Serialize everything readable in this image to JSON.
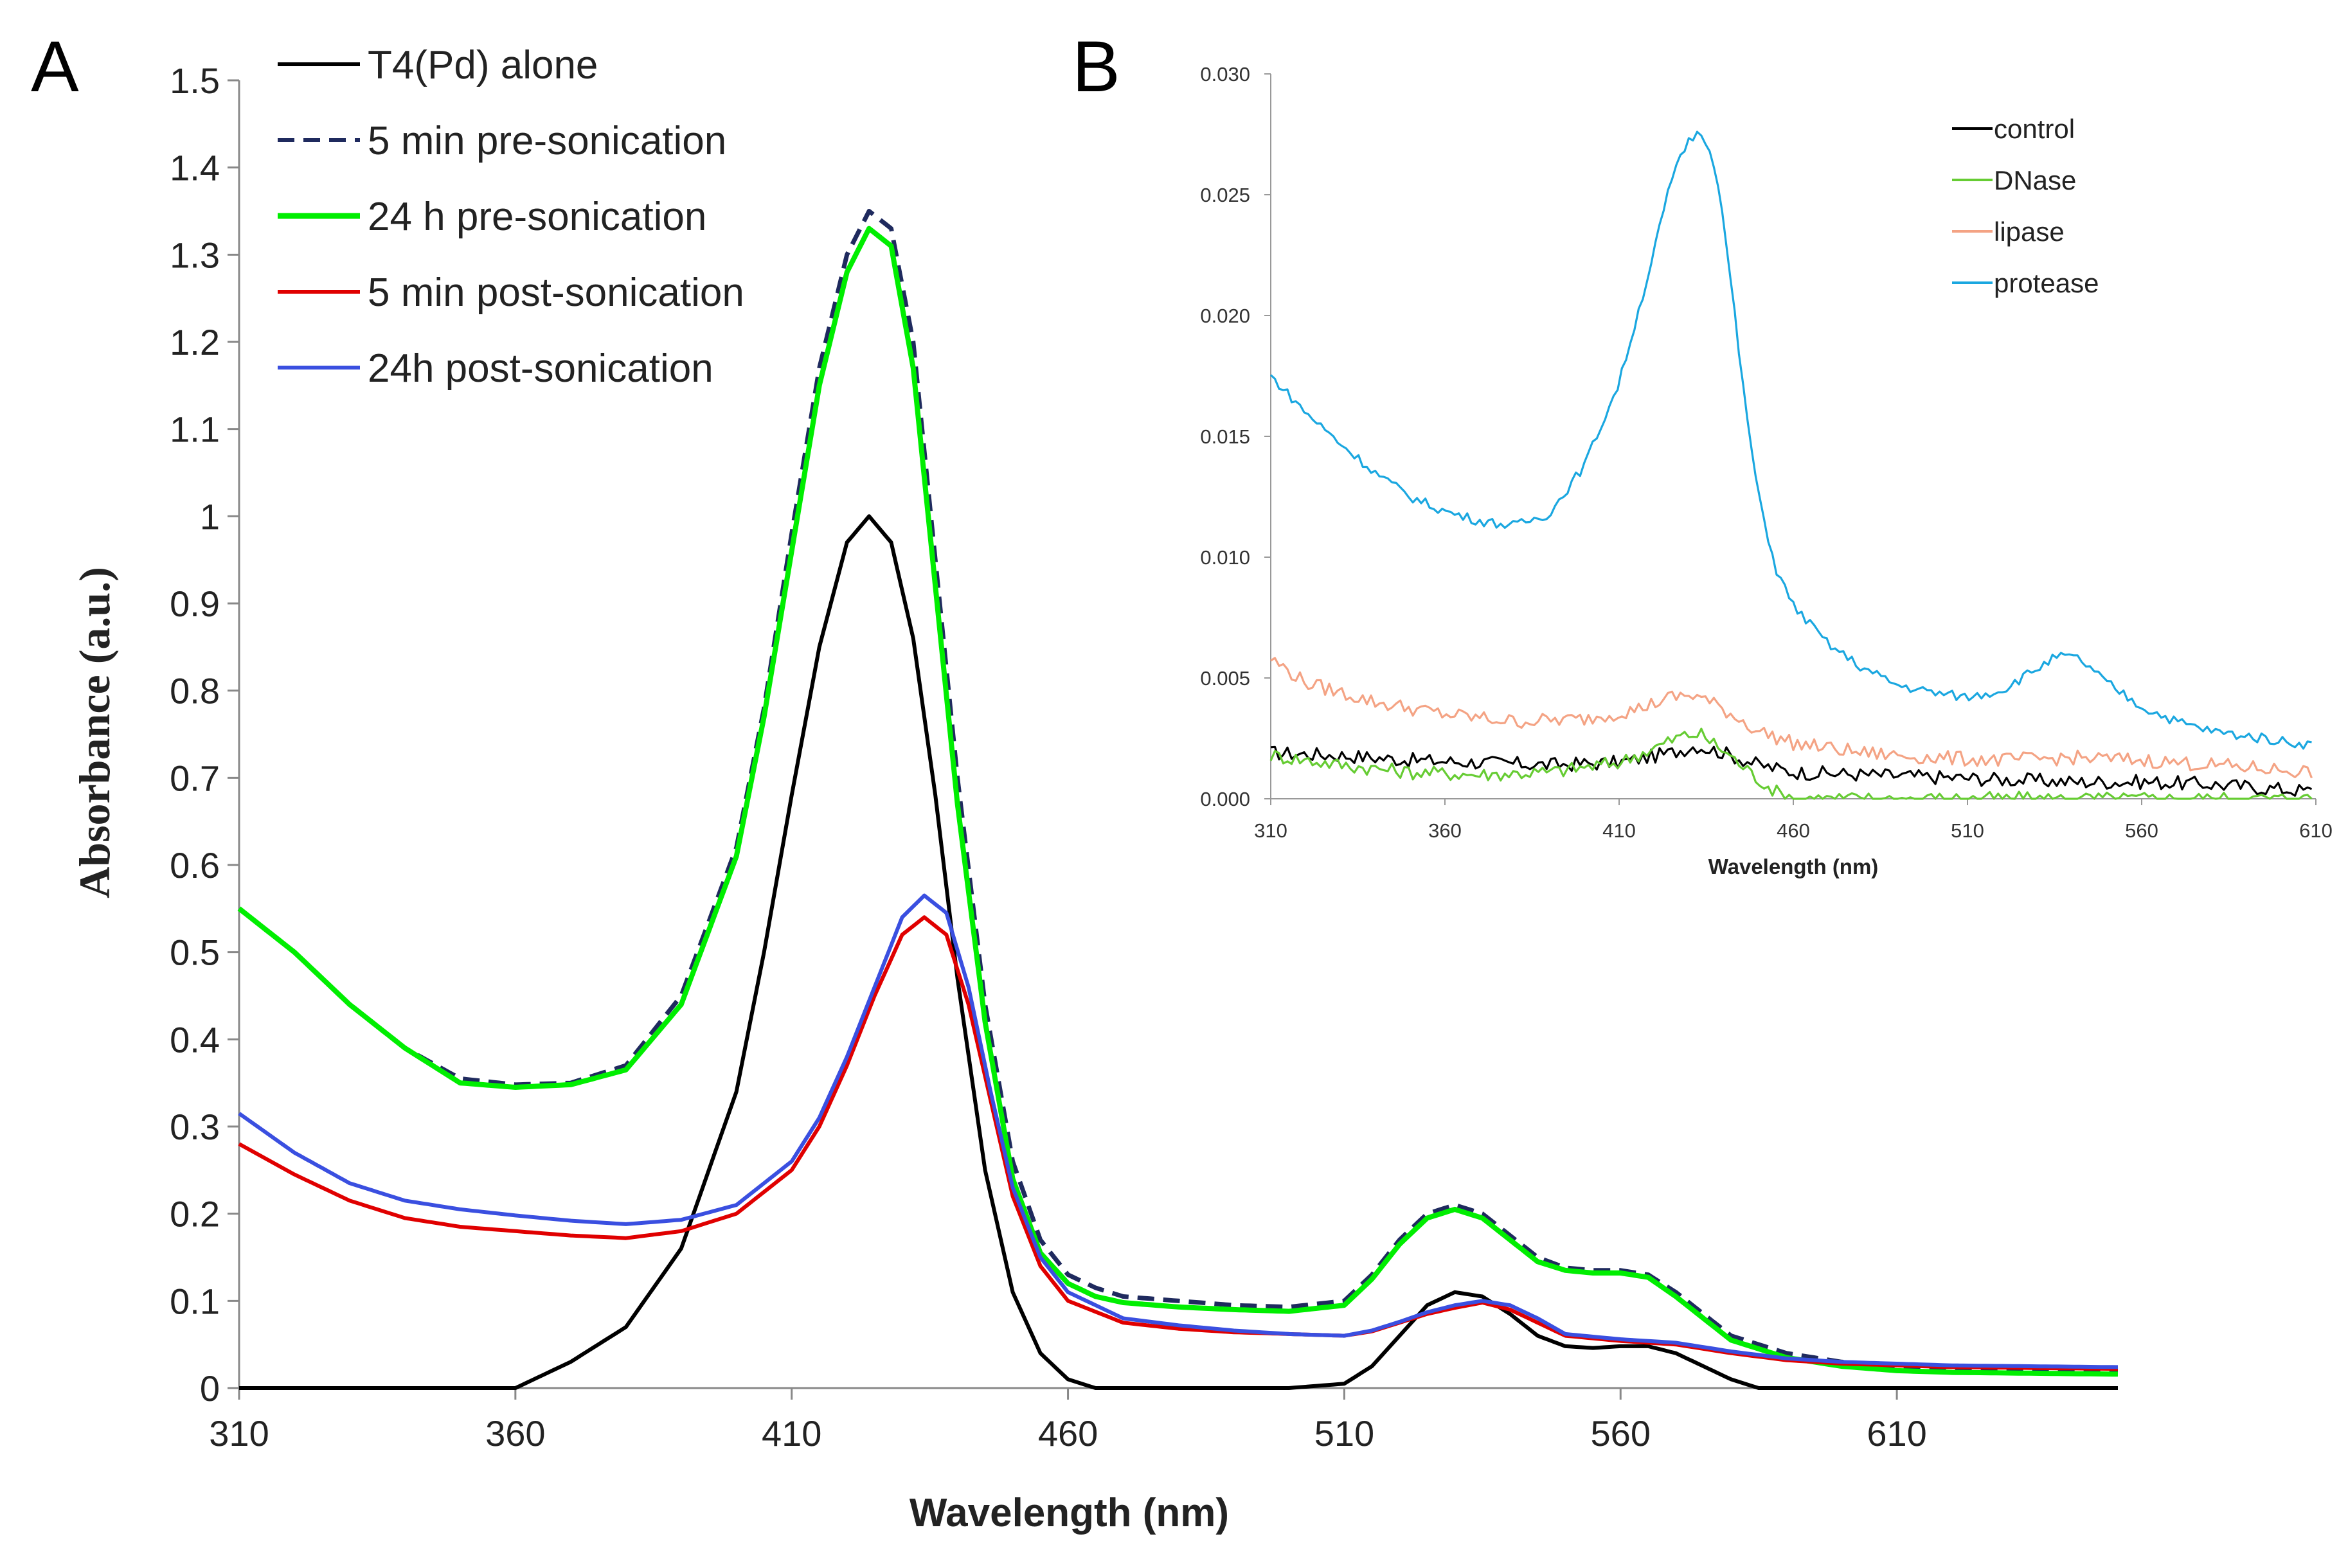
{
  "chart_data": [
    {
      "panel": "A",
      "type": "line",
      "title": "",
      "xlabel": "Wavelength (nm)",
      "ylabel": "Absorbance (a.u.)",
      "xlim": [
        310,
        650
      ],
      "ylim": [
        0,
        1.5
      ],
      "xticks": [
        "310",
        "360",
        "410",
        "460",
        "510",
        "560",
        "610"
      ],
      "xtick_values": [
        310,
        360,
        410,
        460,
        510,
        560,
        610
      ],
      "yticks": [
        "0",
        "0.1",
        "0.2",
        "0.3",
        "0.4",
        "0.5",
        "0.6",
        "0.7",
        "0.8",
        "0.9",
        "1",
        "1.1",
        "1.2",
        "1.3",
        "1.4",
        "1.5"
      ],
      "ytick_values": [
        0,
        0.1,
        0.2,
        0.3,
        0.4,
        0.5,
        0.6,
        0.7,
        0.8,
        0.9,
        1.0,
        1.1,
        1.2,
        1.3,
        1.4,
        1.5
      ],
      "legend_position": "top-left",
      "series": [
        {
          "name": "T4(Pd) alone",
          "color": "#000000",
          "dash": "solid",
          "x": [
            310,
            360,
            370,
            380,
            390,
            400,
            405,
            410,
            415,
            420,
            424,
            428,
            432,
            436,
            440,
            445,
            450,
            455,
            460,
            465,
            470,
            480,
            500,
            510,
            515,
            520,
            525,
            530,
            535,
            540,
            545,
            550,
            555,
            560,
            565,
            570,
            575,
            580,
            585,
            590,
            650
          ],
          "y": [
            0,
            0,
            0.03,
            0.07,
            0.16,
            0.34,
            0.5,
            0.68,
            0.85,
            0.97,
            1.0,
            0.97,
            0.86,
            0.68,
            0.47,
            0.25,
            0.11,
            0.04,
            0.01,
            0.0,
            0,
            0,
            0,
            0.005,
            0.025,
            0.06,
            0.095,
            0.11,
            0.105,
            0.085,
            0.06,
            0.048,
            0.046,
            0.048,
            0.048,
            0.04,
            0.025,
            0.01,
            0.0,
            0,
            0
          ]
        },
        {
          "name": "5 min pre-sonication",
          "color": "#1f2a5e",
          "dash": "dashed",
          "x": [
            310,
            320,
            330,
            340,
            350,
            360,
            370,
            380,
            390,
            400,
            405,
            410,
            415,
            420,
            424,
            428,
            432,
            436,
            440,
            445,
            450,
            455,
            460,
            465,
            470,
            480,
            490,
            500,
            510,
            515,
            520,
            525,
            530,
            535,
            540,
            545,
            550,
            555,
            560,
            565,
            570,
            575,
            580,
            590,
            600,
            610,
            620,
            650
          ],
          "y": [
            0.55,
            0.5,
            0.44,
            0.39,
            0.355,
            0.348,
            0.35,
            0.37,
            0.45,
            0.62,
            0.78,
            0.98,
            1.17,
            1.3,
            1.35,
            1.33,
            1.2,
            0.95,
            0.7,
            0.44,
            0.26,
            0.17,
            0.13,
            0.115,
            0.105,
            0.1,
            0.095,
            0.093,
            0.1,
            0.13,
            0.17,
            0.2,
            0.21,
            0.2,
            0.175,
            0.15,
            0.138,
            0.135,
            0.135,
            0.13,
            0.11,
            0.085,
            0.06,
            0.04,
            0.03,
            0.025,
            0.022,
            0.02
          ]
        },
        {
          "name": "24 h pre-sonication",
          "color": "#00ee00",
          "dash": "solid",
          "x": [
            310,
            320,
            330,
            340,
            350,
            360,
            370,
            380,
            390,
            400,
            405,
            410,
            415,
            420,
            424,
            428,
            432,
            436,
            440,
            445,
            450,
            455,
            460,
            465,
            470,
            480,
            490,
            500,
            510,
            515,
            520,
            525,
            530,
            535,
            540,
            545,
            550,
            555,
            560,
            565,
            570,
            575,
            580,
            590,
            600,
            610,
            620,
            650
          ],
          "y": [
            0.55,
            0.5,
            0.44,
            0.39,
            0.35,
            0.345,
            0.348,
            0.365,
            0.44,
            0.61,
            0.77,
            0.96,
            1.15,
            1.28,
            1.33,
            1.31,
            1.17,
            0.92,
            0.67,
            0.42,
            0.24,
            0.155,
            0.12,
            0.105,
            0.098,
            0.093,
            0.09,
            0.088,
            0.095,
            0.125,
            0.165,
            0.195,
            0.205,
            0.195,
            0.17,
            0.145,
            0.135,
            0.132,
            0.132,
            0.127,
            0.105,
            0.08,
            0.055,
            0.035,
            0.025,
            0.02,
            0.018,
            0.016
          ]
        },
        {
          "name": "5 min post-sonication",
          "color": "#e00000",
          "dash": "solid",
          "x": [
            310,
            320,
            330,
            340,
            350,
            360,
            370,
            380,
            390,
            400,
            410,
            415,
            420,
            425,
            430,
            434,
            438,
            442,
            446,
            450,
            455,
            460,
            470,
            480,
            490,
            500,
            510,
            515,
            520,
            525,
            530,
            535,
            540,
            545,
            550,
            560,
            570,
            580,
            590,
            600,
            620,
            650
          ],
          "y": [
            0.28,
            0.245,
            0.215,
            0.195,
            0.185,
            0.18,
            0.175,
            0.172,
            0.18,
            0.2,
            0.25,
            0.3,
            0.37,
            0.45,
            0.52,
            0.54,
            0.52,
            0.44,
            0.33,
            0.22,
            0.14,
            0.1,
            0.075,
            0.068,
            0.064,
            0.062,
            0.06,
            0.065,
            0.075,
            0.085,
            0.092,
            0.098,
            0.09,
            0.075,
            0.06,
            0.054,
            0.05,
            0.04,
            0.032,
            0.028,
            0.024,
            0.022
          ]
        },
        {
          "name": "24h post-sonication",
          "color": "#3a4fe0",
          "dash": "solid",
          "x": [
            310,
            320,
            330,
            340,
            350,
            360,
            370,
            380,
            390,
            400,
            410,
            415,
            420,
            425,
            430,
            434,
            438,
            442,
            446,
            450,
            455,
            460,
            470,
            480,
            490,
            500,
            510,
            515,
            520,
            525,
            530,
            535,
            540,
            545,
            550,
            560,
            570,
            580,
            590,
            600,
            620,
            650
          ],
          "y": [
            0.315,
            0.27,
            0.235,
            0.215,
            0.205,
            0.198,
            0.192,
            0.188,
            0.193,
            0.21,
            0.26,
            0.31,
            0.38,
            0.46,
            0.54,
            0.565,
            0.545,
            0.46,
            0.34,
            0.23,
            0.15,
            0.11,
            0.08,
            0.072,
            0.066,
            0.062,
            0.06,
            0.066,
            0.076,
            0.087,
            0.095,
            0.1,
            0.095,
            0.08,
            0.062,
            0.056,
            0.052,
            0.042,
            0.034,
            0.03,
            0.026,
            0.024
          ]
        }
      ]
    },
    {
      "panel": "B",
      "type": "line",
      "title": "",
      "xlabel": "Wavelength (nm)",
      "ylabel": "",
      "xlim": [
        310,
        610
      ],
      "ylim": [
        0,
        0.03
      ],
      "xticks": [
        "310",
        "360",
        "410",
        "460",
        "510",
        "560",
        "610"
      ],
      "xtick_values": [
        310,
        360,
        410,
        460,
        510,
        560,
        610
      ],
      "yticks": [
        "0.000",
        "0.005",
        "0.010",
        "0.015",
        "0.020",
        "0.025",
        "0.030"
      ],
      "ytick_values": [
        0,
        0.005,
        0.01,
        0.015,
        0.02,
        0.025,
        0.03
      ],
      "legend_position": "top-right",
      "series": [
        {
          "name": "control",
          "color": "#000000",
          "noise": 0.0003,
          "x": [
            310,
            330,
            350,
            370,
            390,
            410,
            425,
            432,
            440,
            450,
            460,
            480,
            500,
            520,
            540,
            560,
            580,
            600,
            610
          ],
          "y": [
            0.0019,
            0.0018,
            0.0016,
            0.0015,
            0.0014,
            0.0015,
            0.0019,
            0.0022,
            0.0019,
            0.0014,
            0.0011,
            0.001,
            0.0009,
            0.0008,
            0.0007,
            0.0007,
            0.0006,
            0.0004,
            0.0003
          ]
        },
        {
          "name": "DNase",
          "color": "#66cc33",
          "noise": 0.0003,
          "x": [
            310,
            330,
            350,
            370,
            390,
            410,
            420,
            428,
            433,
            440,
            450,
            456,
            462,
            480,
            520,
            560,
            610
          ],
          "y": [
            0.0018,
            0.0014,
            0.0011,
            0.001,
            0.0011,
            0.0015,
            0.0021,
            0.0026,
            0.0027,
            0.002,
            0.0008,
            0.0002,
            0.0,
            0.0,
            0.0,
            0.0,
            0.0
          ]
        },
        {
          "name": "lipase",
          "color": "#f4a384",
          "noise": 0.0003,
          "x": [
            310,
            320,
            340,
            360,
            380,
            400,
            415,
            425,
            432,
            440,
            450,
            460,
            480,
            500,
            520,
            540,
            560,
            580,
            600,
            610
          ],
          "y": [
            0.0058,
            0.0048,
            0.004,
            0.0035,
            0.0032,
            0.0033,
            0.0037,
            0.0042,
            0.0043,
            0.0037,
            0.0028,
            0.0023,
            0.0019,
            0.0017,
            0.0016,
            0.0017,
            0.0016,
            0.0014,
            0.0012,
            0.0011
          ]
        },
        {
          "name": "protease",
          "color": "#1aa7e0",
          "noise": 0.0002,
          "x": [
            310,
            320,
            330,
            340,
            350,
            360,
            370,
            380,
            390,
            400,
            410,
            418,
            425,
            430,
            434,
            438,
            442,
            446,
            450,
            455,
            460,
            470,
            480,
            490,
            500,
            510,
            520,
            530,
            536,
            542,
            550,
            560,
            570,
            580,
            590,
            600,
            610
          ],
          "y": [
            0.0175,
            0.016,
            0.0147,
            0.0135,
            0.0125,
            0.0119,
            0.0115,
            0.0113,
            0.0118,
            0.0138,
            0.0172,
            0.0215,
            0.0256,
            0.0273,
            0.0276,
            0.026,
            0.0215,
            0.0165,
            0.0125,
            0.0095,
            0.008,
            0.0064,
            0.0054,
            0.0047,
            0.0044,
            0.0042,
            0.0045,
            0.0054,
            0.0059,
            0.0058,
            0.0048,
            0.0038,
            0.0032,
            0.0028,
            0.0026,
            0.0024,
            0.0022
          ]
        }
      ]
    }
  ],
  "panel_labels": [
    "A",
    "B"
  ]
}
